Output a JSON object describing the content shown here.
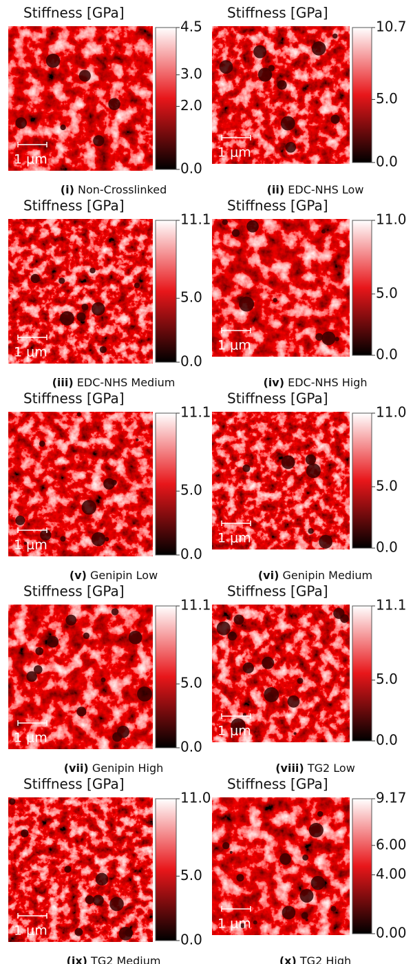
{
  "panels": [
    {
      "title": "Stiffness [GPa]",
      "scale_bar": "1 μm",
      "numeral": "(i)",
      "name": "Non-Crosslinked",
      "colorbar": {
        "lim": [
          0,
          4.5
        ],
        "ticks": [
          {
            "value": 4.5,
            "label": "4.5"
          },
          {
            "value": 3,
            "label": "3.0"
          },
          {
            "value": 2,
            "label": "2.0"
          },
          {
            "value": 0,
            "label": "0.0"
          }
        ]
      }
    },
    {
      "title": "Stiffness [GPa]",
      "scale_bar": "1 μm",
      "numeral": "(ii)",
      "name": "EDC-NHS Low",
      "colorbar": {
        "lim": [
          0,
          10.7
        ],
        "ticks": [
          {
            "value": 10.7,
            "label": "10.7"
          },
          {
            "value": 5,
            "label": "5.0"
          },
          {
            "value": 0,
            "label": "0.0"
          }
        ]
      }
    },
    {
      "title": "Stiffness [GPa]",
      "scale_bar": "1 μm",
      "numeral": "(iii)",
      "name": "EDC-NHS Medium",
      "colorbar": {
        "lim": [
          0,
          11.1
        ],
        "ticks": [
          {
            "value": 11.1,
            "label": "11.1"
          },
          {
            "value": 5,
            "label": "5.0"
          },
          {
            "value": 0,
            "label": "0.0"
          }
        ]
      }
    },
    {
      "title": "Stiffness [GPa]",
      "scale_bar": "1 μm",
      "numeral": "(iv)",
      "name": "EDC-NHS High",
      "colorbar": {
        "lim": [
          0,
          11
        ],
        "ticks": [
          {
            "value": 11,
            "label": "11.0"
          },
          {
            "value": 5,
            "label": "5.0"
          },
          {
            "value": 0,
            "label": "0.0"
          }
        ]
      }
    },
    {
      "title": "Stiffness [GPa]",
      "scale_bar": "1 μm",
      "numeral": "(v)",
      "name": "Genipin Low",
      "colorbar": {
        "lim": [
          0,
          11.1
        ],
        "ticks": [
          {
            "value": 11.1,
            "label": "11.1"
          },
          {
            "value": 5,
            "label": "5.0"
          },
          {
            "value": 0,
            "label": "0.0"
          }
        ]
      }
    },
    {
      "title": "Stiffness [GPa]",
      "scale_bar": "1 μm",
      "numeral": "(vi)",
      "name": "Genipin Medium",
      "colorbar": {
        "lim": [
          0,
          11
        ],
        "ticks": [
          {
            "value": 11,
            "label": "11.0"
          },
          {
            "value": 5,
            "label": "5.0"
          },
          {
            "value": 0,
            "label": "0.0"
          }
        ]
      }
    },
    {
      "title": "Stiffness [GPa]",
      "scale_bar": "1 μm",
      "numeral": "(vii)",
      "name": "Genipin High",
      "colorbar": {
        "lim": [
          0,
          11.1
        ],
        "ticks": [
          {
            "value": 11.1,
            "label": "11.1"
          },
          {
            "value": 5,
            "label": "5.0"
          },
          {
            "value": 0,
            "label": "0.0"
          }
        ]
      }
    },
    {
      "title": "Stiffness [GPa]",
      "scale_bar": "1 μm",
      "numeral": "(viii)",
      "name": "TG2 Low",
      "colorbar": {
        "lim": [
          0,
          11.1
        ],
        "ticks": [
          {
            "value": 11.1,
            "label": "11.1"
          },
          {
            "value": 5,
            "label": "5.0"
          },
          {
            "value": 0,
            "label": "0.0"
          }
        ]
      }
    },
    {
      "title": "Stiffness [GPa]",
      "scale_bar": "1 μm",
      "numeral": "(ix)",
      "name": "TG2 Medium",
      "colorbar": {
        "lim": [
          0,
          11
        ],
        "ticks": [
          {
            "value": 11,
            "label": "11.0"
          },
          {
            "value": 5,
            "label": "5.0"
          },
          {
            "value": 0,
            "label": "0.0"
          }
        ]
      }
    },
    {
      "title": "Stiffness [GPa]",
      "scale_bar": "1 μm",
      "numeral": "(x)",
      "name": "TG2 High",
      "colorbar": {
        "lim": [
          0,
          9.17
        ],
        "ticks": [
          {
            "value": 9.17,
            "label": "9.17"
          },
          {
            "value": 6,
            "label": "6.00"
          },
          {
            "value": 4,
            "label": "4.00"
          },
          {
            "value": 0,
            "label": "0.00"
          }
        ]
      }
    }
  ]
}
